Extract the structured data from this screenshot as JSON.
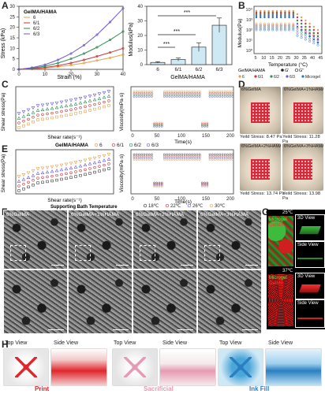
{
  "panels": {
    "A": "A",
    "B": "B",
    "C": "C",
    "D": "D",
    "E": "E",
    "F": "F",
    "G": "G",
    "H": "H"
  },
  "panelA_left": {
    "legend_title": "GelMA/HAMA",
    "legend": [
      "6",
      "6/1",
      "6/2",
      "6/3"
    ],
    "ylabel": "Stress (kPa)",
    "xlabel": "Strain (%)",
    "xticks": [
      "0",
      "10",
      "20",
      "30",
      "40"
    ],
    "yticks": [
      "0",
      "5",
      "10",
      "15",
      "20",
      "25",
      "30"
    ]
  },
  "panelA_right": {
    "ylabel": "Modulus(kPa)",
    "xlabel": "GelMA/HAMA",
    "sig": [
      "***",
      "***",
      "***"
    ]
  },
  "panelB": {
    "ylabel": "Modulus(Pa)",
    "xlabel": "Temperature (°C)",
    "legend_title": "GelMA/HAMA",
    "legend_items": [
      "G'",
      "G''"
    ],
    "legend_row2": [
      "6",
      "6/1",
      "6/2",
      "6/3",
      "Microgel"
    ],
    "xticks": [
      "5",
      "10",
      "15",
      "20",
      "25",
      "30",
      "35",
      "40",
      "45"
    ],
    "yticks": [
      "10⁴",
      "10³",
      "10²",
      "10¹",
      "10⁰"
    ]
  },
  "panelC": {
    "ylabel_left": "Shear stress(Pa)",
    "xlabel_left": "Shear rate(s⁻¹)",
    "ylabel_right": "Viscosity(mPa·s)",
    "xlabel_right": "Time(s)",
    "legend_title": "GelMA/HAMA",
    "legend": [
      "6",
      "6/1",
      "6/2",
      "6/3"
    ],
    "xticks_right": [
      "0",
      "50",
      "100",
      "150",
      "200"
    ]
  },
  "panelD": {
    "photos": [
      {
        "label": "6%GelMA",
        "caption": "Yeild Stress: 8.47 Pa"
      },
      {
        "label": "6%GelMA+1%HAMA",
        "caption": "Yeild Stress: 11.28 Pa"
      },
      {
        "label": "6%GelMA+2%HAMA",
        "caption": "Yeild Stress: 13.74 Pa"
      },
      {
        "label": "6%GelMA+3%HAMA",
        "caption": "Yeild Stress: 13.98 Pa"
      }
    ]
  },
  "panelE": {
    "ylabel_left": "Shear stress(Pa)",
    "xlabel_left": "Shear rate(s⁻¹)",
    "ylabel_right": "Viscosity(mPa·s)",
    "xlabel_right": "Time(s)",
    "legend_title": "Supporting Bath Temperature",
    "legend": [
      "18℃",
      "22℃",
      "26℃",
      "30℃"
    ],
    "xticks_right": [
      "0",
      "50",
      "100",
      "150",
      "200"
    ]
  },
  "panelF": {
    "labels": [
      "6%GelMA",
      "6%GelMA+1%HAMA",
      "6%GelMA+2%HAMA",
      "6%GelMA+3%HAMA"
    ]
  },
  "panelG": {
    "temp_top": "25℃",
    "temp_bottom": "37℃",
    "microgel": "Microgel",
    "gelma": "GelMA",
    "view3d": "3D View",
    "side": "Side View"
  },
  "panelH": {
    "top_view": "Top View",
    "side_view": "Side View",
    "captions": [
      "Print",
      "Sacrificial",
      "Ink Fill"
    ]
  },
  "colors": {
    "s6": "#e3a04b",
    "s61": "#c0393b",
    "s62": "#2e8b57",
    "s63": "#6a5acd",
    "print": "#e0262c",
    "sacrificial": "#e79ab4",
    "inkfill": "#2a7fc1"
  },
  "chart_data": [
    {
      "type": "line",
      "title": "",
      "xlabel": "Strain (%)",
      "ylabel": "Stress (kPa)",
      "xlim": [
        0,
        40
      ],
      "ylim": [
        0,
        30
      ],
      "x": [
        0,
        5,
        10,
        15,
        20,
        25,
        30,
        35,
        40
      ],
      "series": [
        {
          "name": "6",
          "values": [
            0,
            0.2,
            0.6,
            1.2,
            2.0,
            3.0,
            4.2,
            5.5,
            7.0
          ]
        },
        {
          "name": "6/1",
          "values": [
            0,
            0.3,
            0.9,
            1.8,
            3.0,
            4.5,
            6.2,
            8.0,
            10.0
          ]
        },
        {
          "name": "6/2",
          "values": [
            0,
            0.5,
            1.5,
            3.0,
            5.0,
            7.5,
            10.5,
            14.0,
            18.0
          ]
        },
        {
          "name": "6/3",
          "values": [
            0,
            0.8,
            2.2,
            4.5,
            7.5,
            11.5,
            16.5,
            22.5,
            29.0
          ]
        }
      ]
    },
    {
      "type": "bar",
      "title": "",
      "xlabel": "GelMA/HAMA",
      "ylabel": "Modulus(kPa)",
      "categories": [
        "6",
        "6/1",
        "6/2",
        "6/3"
      ],
      "values": [
        1.5,
        3.5,
        12,
        27
      ],
      "errors": [
        0.5,
        1.0,
        3.0,
        5.0
      ],
      "ylim": [
        0,
        40
      ]
    }
  ]
}
